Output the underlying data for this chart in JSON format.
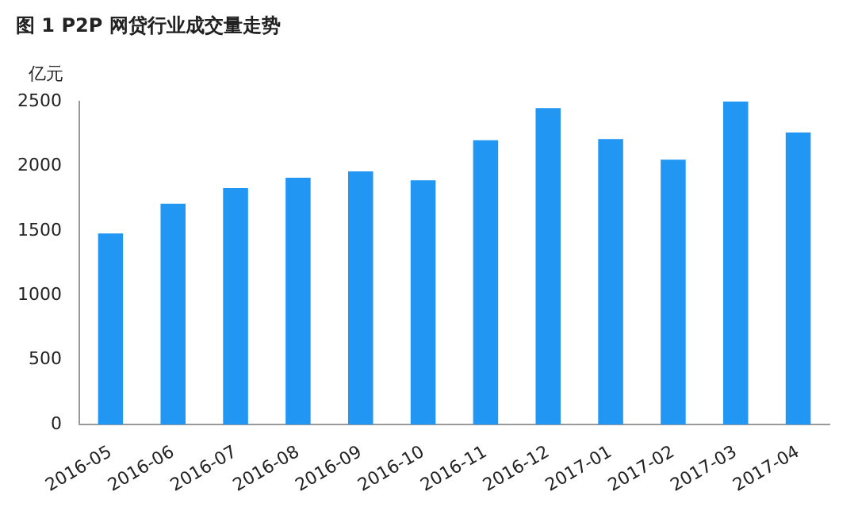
{
  "chart_data": {
    "type": "bar",
    "title": "图 1    P2P 网贷行业成交量走势",
    "ylabel": "亿元",
    "categories": [
      "2016-05",
      "2016-06",
      "2016-07",
      "2016-08",
      "2016-09",
      "2016-10",
      "2016-11",
      "2016-12",
      "2017-01",
      "2017-02",
      "2017-03",
      "2017-04"
    ],
    "values": [
      1480,
      1710,
      1830,
      1910,
      1960,
      1890,
      2200,
      2450,
      2210,
      2050,
      2500,
      2260
    ],
    "color": "#2196f3",
    "ylim": [
      0,
      2500
    ],
    "yticks": [
      0,
      500,
      1000,
      1500,
      2000,
      2500
    ],
    "grid": false,
    "legend": false
  }
}
